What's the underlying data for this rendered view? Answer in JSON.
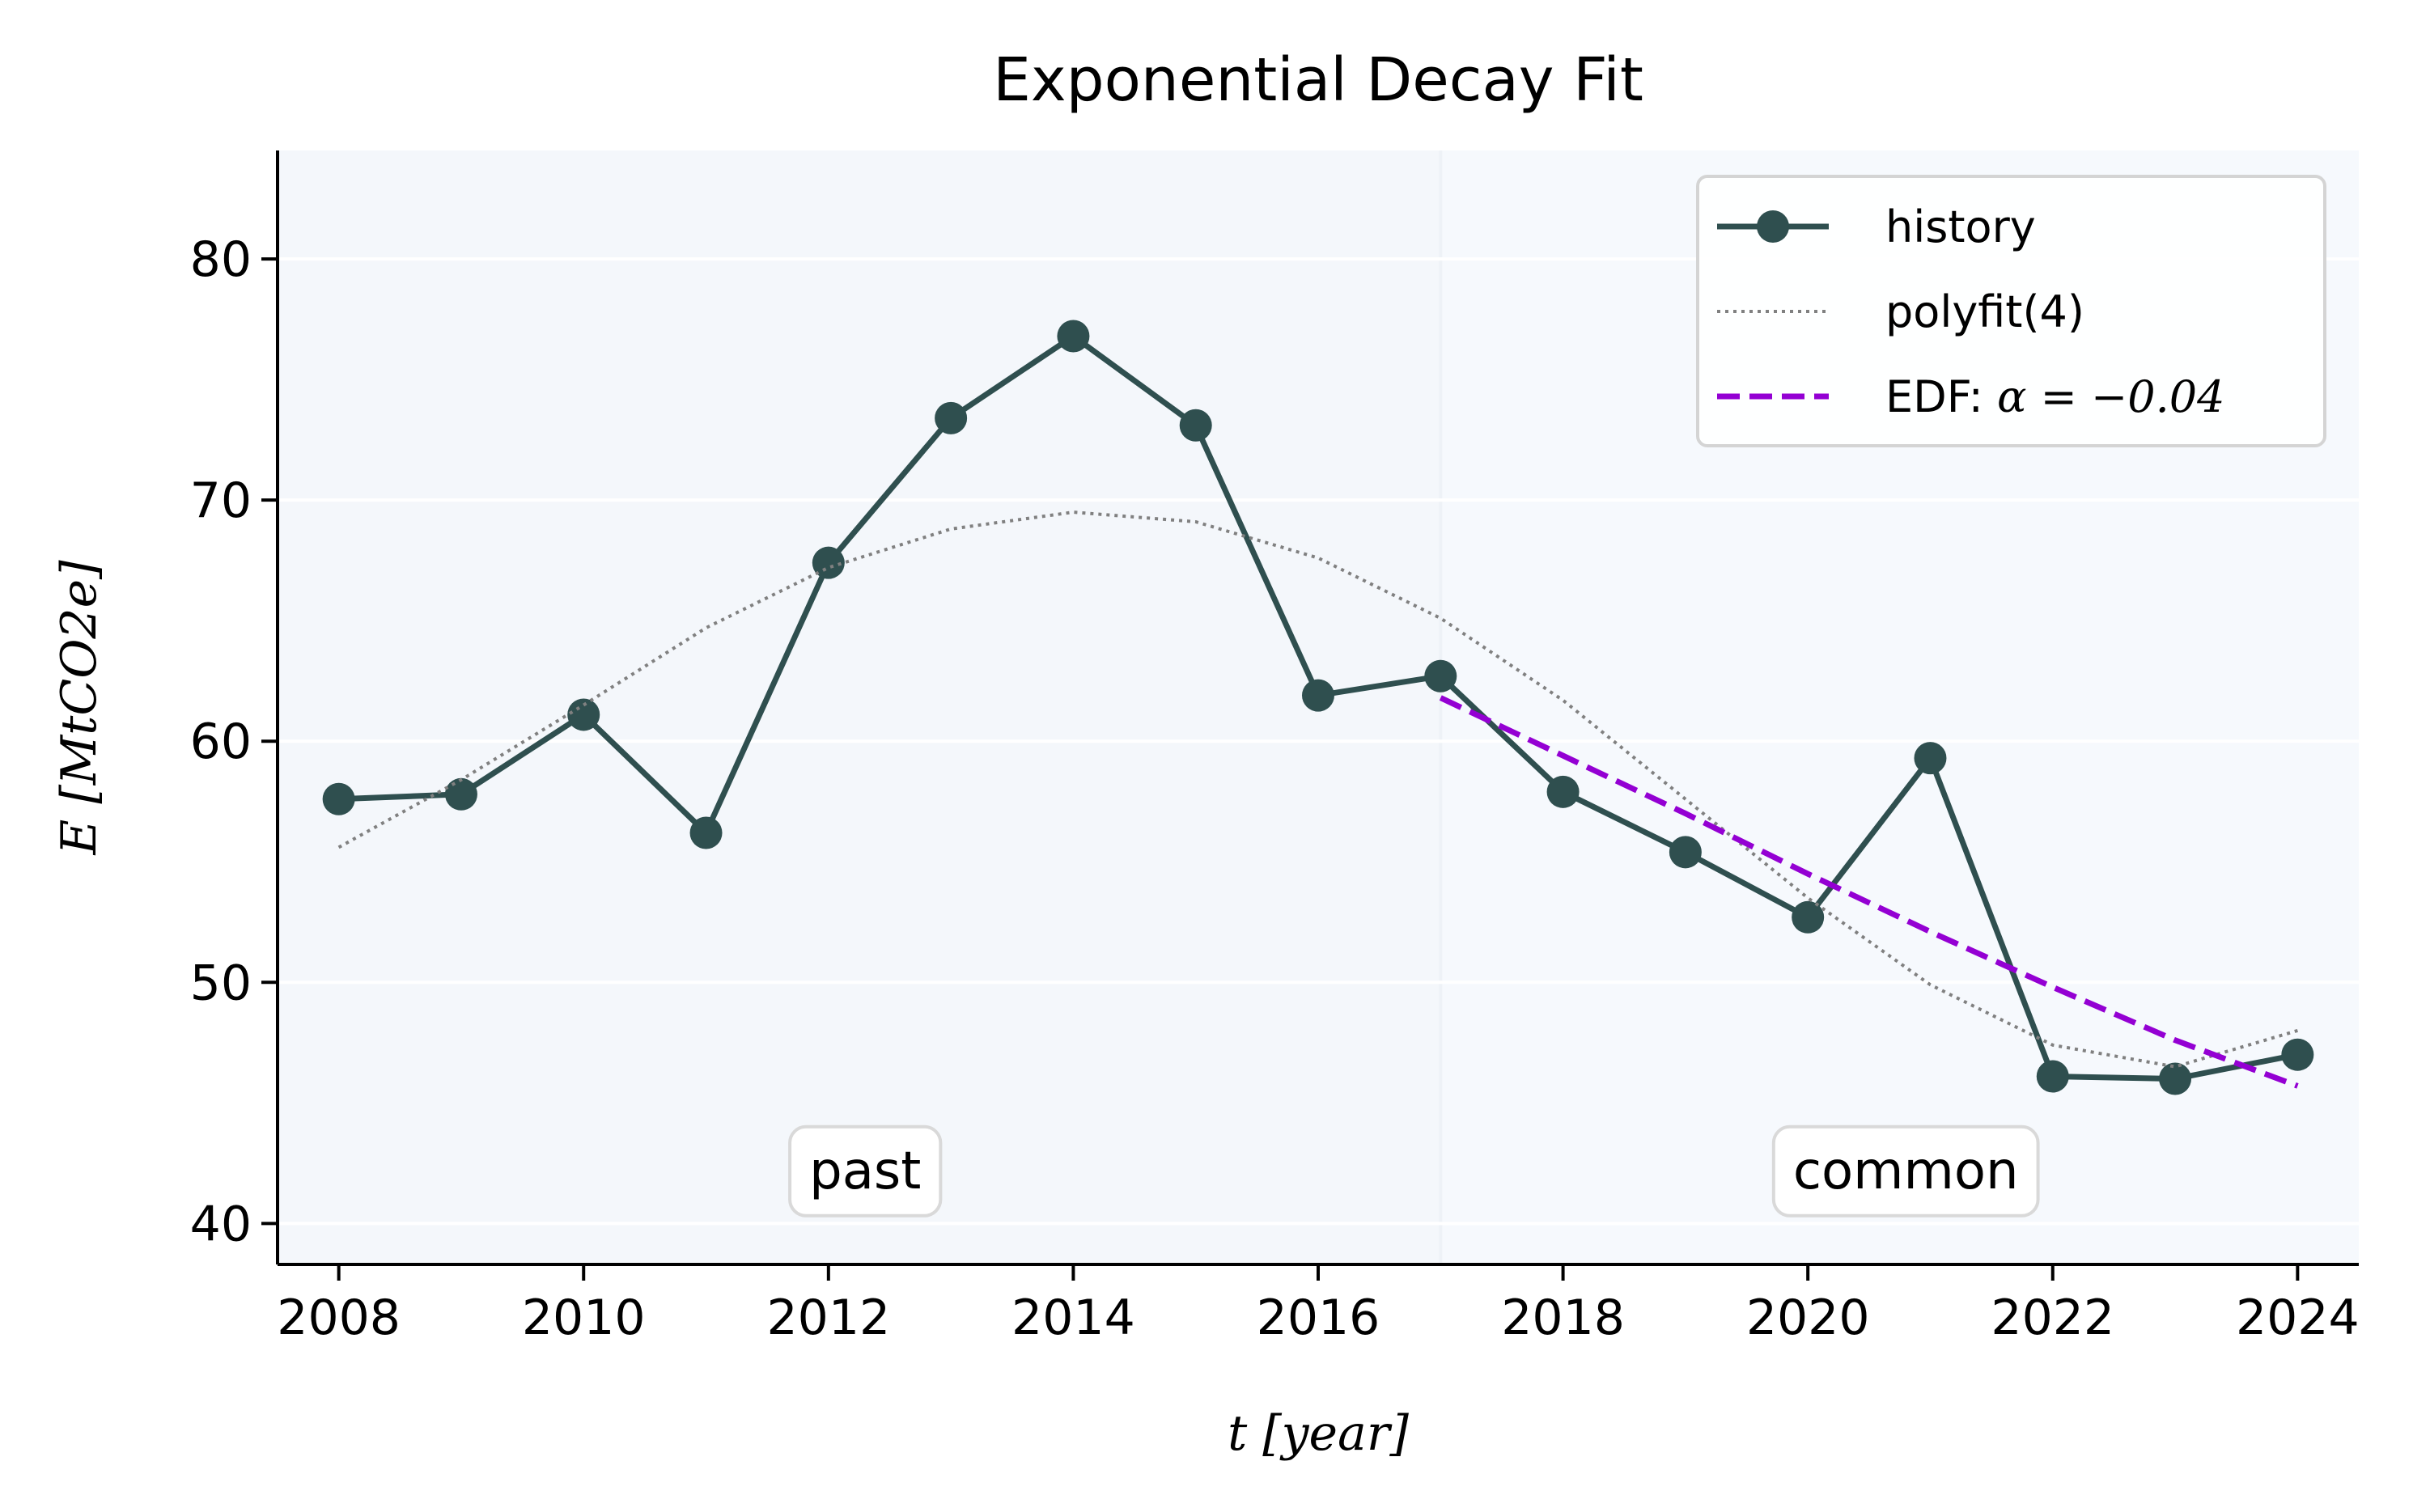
{
  "chart_data": {
    "type": "line",
    "title": "Exponential Decay Fit",
    "xlabel": "t [year]",
    "ylabel": "E [MtCO2e]",
    "xlim": [
      2007.5,
      2024.5
    ],
    "ylim": [
      38.3,
      84.5
    ],
    "xticks": [
      2008,
      2010,
      2012,
      2014,
      2016,
      2018,
      2020,
      2022,
      2024
    ],
    "yticks": [
      40,
      50,
      60,
      70,
      80
    ],
    "grid": "horizontal",
    "legend_position": "top-right",
    "split_year": 2017,
    "regions": [
      {
        "label": "past",
        "x": 2012.3,
        "y": 42.2
      },
      {
        "label": "common",
        "x": 2020.8,
        "y": 42.2
      }
    ],
    "series": [
      {
        "name": "history",
        "style": "line-marker",
        "color": "#2f4f4f",
        "x": [
          2008,
          2009,
          2010,
          2011,
          2012,
          2013,
          2014,
          2015,
          2016,
          2017,
          2018,
          2019,
          2020,
          2021,
          2022,
          2023,
          2024
        ],
        "values": [
          57.6,
          57.8,
          61.1,
          56.2,
          67.4,
          73.4,
          76.8,
          73.1,
          61.9,
          62.7,
          57.9,
          55.4,
          52.7,
          59.3,
          46.1,
          46.0,
          47.0
        ]
      },
      {
        "name": "polyfit(4)",
        "style": "dotted",
        "color": "#808080",
        "x": [
          2008,
          2009,
          2010,
          2011,
          2012,
          2013,
          2014,
          2015,
          2016,
          2017,
          2018,
          2019,
          2020,
          2021,
          2022,
          2023,
          2024
        ],
        "values": [
          55.6,
          58.4,
          61.5,
          64.7,
          67.2,
          68.8,
          69.5,
          69.1,
          67.6,
          65.1,
          61.7,
          57.6,
          53.5,
          49.9,
          47.4,
          46.5,
          48.0
        ]
      },
      {
        "name": "EDF: α = −0.04",
        "legend_label_prefix": "EDF: ",
        "legend_label_math": "α = −0.04",
        "style": "dashed",
        "color": "#9400d3",
        "x": [
          2017,
          2018,
          2019,
          2020,
          2021,
          2022,
          2023,
          2024
        ],
        "values": [
          61.8,
          59.4,
          57.0,
          54.5,
          52.1,
          49.8,
          47.6,
          45.7
        ]
      }
    ]
  }
}
